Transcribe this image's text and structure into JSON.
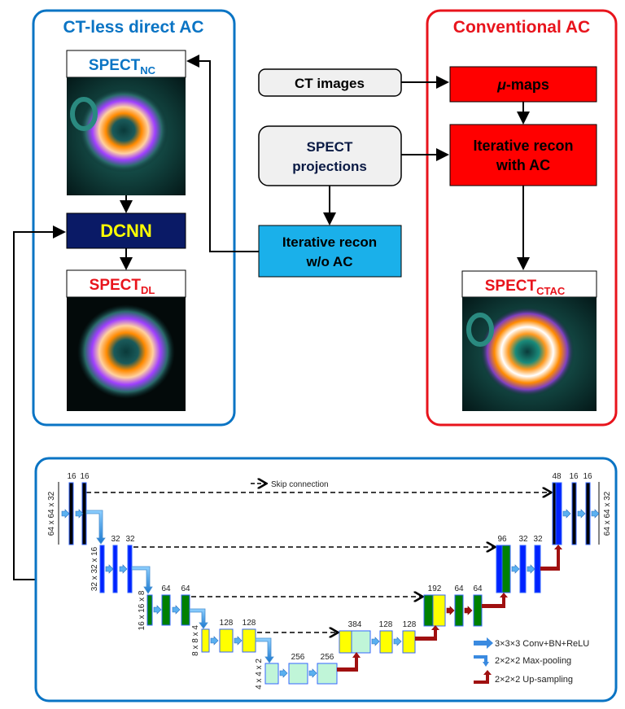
{
  "left_panel": {
    "title": "CT-less direct AC",
    "spect_nc": "SPECT",
    "spect_nc_sub": "NC",
    "dcnn": "DCNN",
    "spect_dl": "SPECT",
    "spect_dl_sub": "DL",
    "color": "#0a74c4"
  },
  "right_panel": {
    "title": "Conventional AC",
    "mu_maps_symbol": "μ",
    "mu_maps": "-maps",
    "recon_ac_line1": "Iterative recon",
    "recon_ac_line2": "with AC",
    "spect_ctac": "SPECT",
    "spect_ctac_sub": "CTAC",
    "color": "#e8141c"
  },
  "middle": {
    "ct_images": "CT images",
    "spect_proj_line1": "SPECT",
    "spect_proj_line2": "projections",
    "recon_noac_line1": "Iterative recon",
    "recon_noac_line2": "w/o AC"
  },
  "unet": {
    "skip_legend": "Skip connection",
    "dims": [
      "64 x 64 x 32",
      "32 x 32 x 16",
      "16 x 16 x 8",
      "8 x 8 x 4",
      "4 x 4 x 2",
      "64 x 64 x 32"
    ],
    "enc": [
      [
        "16",
        "16"
      ],
      [
        "32",
        "32"
      ],
      [
        "64",
        "64"
      ],
      [
        "128",
        "128"
      ],
      [
        "256",
        "256"
      ]
    ],
    "dec": [
      [
        "384",
        "128",
        "128"
      ],
      [
        "192",
        "64",
        "64"
      ],
      [
        "96",
        "32",
        "32"
      ],
      [
        "48",
        "16",
        "16"
      ]
    ],
    "legend": [
      "3×3×3 Conv+BN+ReLU",
      "2×2×2 Max-pooling",
      "2×2×2 Up-sampling"
    ],
    "color": "#0a74c4"
  }
}
